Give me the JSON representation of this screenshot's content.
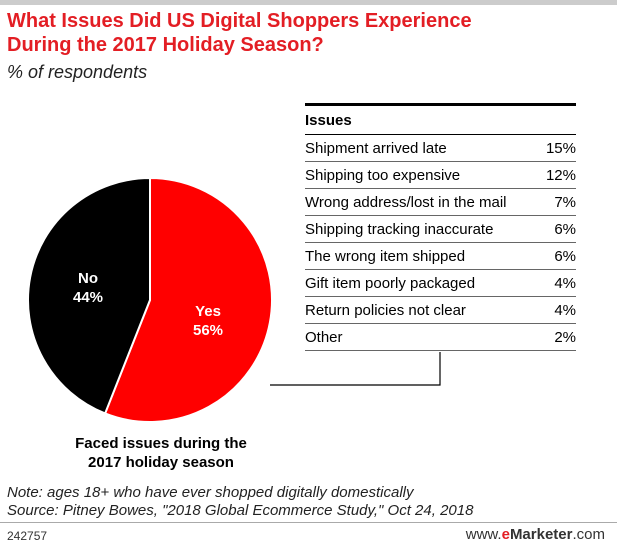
{
  "header": {
    "title_line1": "What Issues Did US Digital Shoppers Experience",
    "title_line2": "During the 2017 Holiday Season?",
    "subtitle": "% of respondents"
  },
  "colors": {
    "accent": "#e31e24",
    "dark": "#000000"
  },
  "chart_data": [
    {
      "type": "pie",
      "title": "Faced issues during the 2017 holiday season",
      "caption_line1": "Faced issues during the",
      "caption_line2": "2017 holiday season",
      "slices": [
        {
          "label": "Yes",
          "value": 56,
          "display": "56%",
          "color": "#ff0000"
        },
        {
          "label": "No",
          "value": 44,
          "display": "44%",
          "color": "#000000"
        }
      ]
    },
    {
      "type": "table",
      "header": "Issues",
      "rows": [
        {
          "label": "Shipment arrived late",
          "value": 15,
          "display": "15%"
        },
        {
          "label": "Shipping too expensive",
          "value": 12,
          "display": "12%"
        },
        {
          "label": "Wrong address/lost in the mail",
          "value": 7,
          "display": "7%"
        },
        {
          "label": "Shipping tracking inaccurate",
          "value": 6,
          "display": "6%"
        },
        {
          "label": "The wrong item shipped",
          "value": 6,
          "display": "6%"
        },
        {
          "label": "Gift item poorly packaged",
          "value": 4,
          "display": "4%"
        },
        {
          "label": "Return policies not clear",
          "value": 4,
          "display": "4%"
        },
        {
          "label": "Other",
          "value": 2,
          "display": "2%"
        }
      ]
    }
  ],
  "footer": {
    "note": "Note: ages 18+ who have ever shopped digitally domestically",
    "source": "Source: Pitney Bowes, \"2018 Global Ecommerce Study,\" Oct 24, 2018",
    "code": "242757",
    "brand_prefix": "www.",
    "brand_e": "e",
    "brand_marketer": "Marketer",
    "brand_suffix": ".com"
  }
}
